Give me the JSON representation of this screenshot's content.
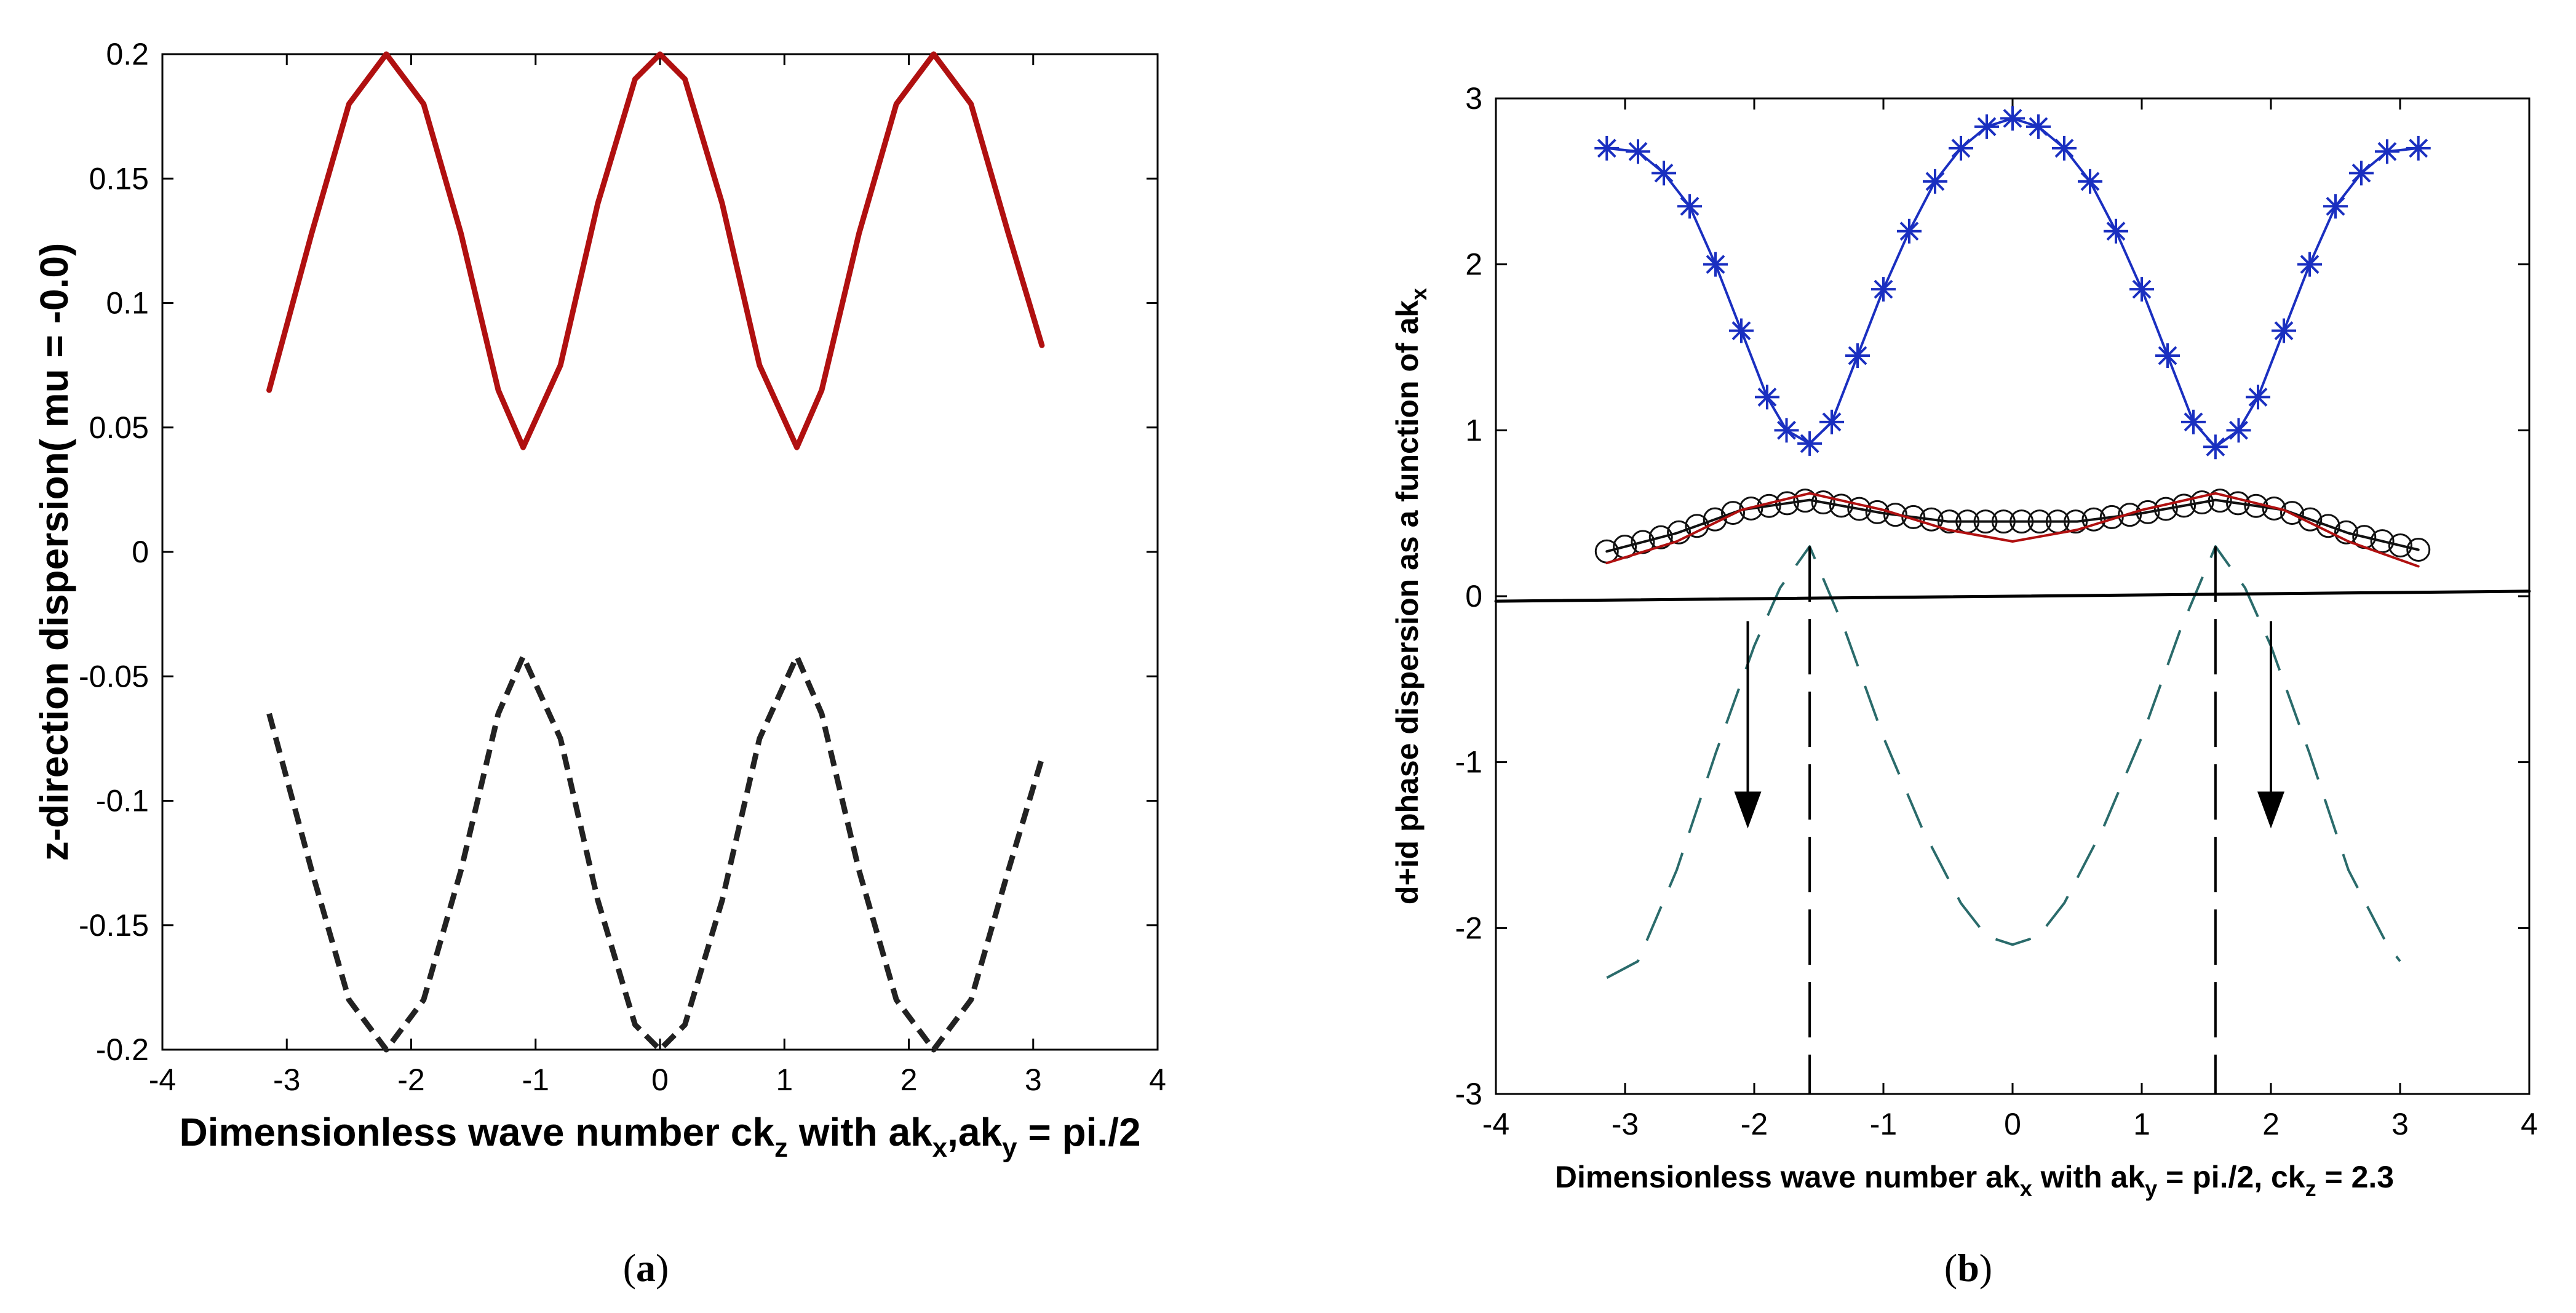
{
  "chart_data": [
    {
      "panel": "a",
      "type": "line",
      "caption_letter": "a",
      "xlabel": {
        "main": "Dimensionless wave number ck",
        "sub1": "z",
        "mid": " with ak",
        "sub2": "x",
        "mid2": ",ak",
        "sub3": "y",
        "tail": " = pi./2"
      },
      "ylabel": "z-direction dispersion( mu =  -0.0)",
      "xlim": [
        -4,
        4
      ],
      "ylim": [
        -0.2,
        0.2
      ],
      "xticks": [
        -4,
        -3,
        -2,
        -1,
        0,
        1,
        2,
        3,
        4
      ],
      "xtick_labels": [
        "-4",
        "-3",
        "-2",
        "-1",
        "0",
        "1",
        "2",
        "3",
        "4"
      ],
      "yticks": [
        -0.2,
        -0.15,
        -0.1,
        -0.05,
        0,
        0.05,
        0.1,
        0.15,
        0.2
      ],
      "ytick_labels": [
        "-0.2",
        "-0.15",
        "-0.1",
        "-0.05",
        "0",
        "0.05",
        "0.1",
        "0.15",
        "0.2"
      ],
      "series": [
        {
          "name": "upper solid",
          "style": "solid",
          "color": "#b01010",
          "x": [
            -3.1416,
            -2.8,
            -2.5,
            -2.2,
            -1.9,
            -1.6,
            -1.3,
            -1.1,
            -0.8,
            -0.5,
            -0.2,
            0,
            0.2,
            0.5,
            0.8,
            1.1,
            1.3,
            1.6,
            1.9,
            2.2,
            2.5,
            2.8,
            3.07
          ],
          "y": [
            0.065,
            0.128,
            0.18,
            0.2,
            0.18,
            0.128,
            0.065,
            0.042,
            0.075,
            0.14,
            0.19,
            0.2,
            0.19,
            0.14,
            0.075,
            0.042,
            0.065,
            0.128,
            0.18,
            0.2,
            0.18,
            0.128,
            0.083
          ]
        },
        {
          "name": "lower dashed",
          "style": "dashed",
          "color": "#222222",
          "x": [
            -3.1416,
            -2.8,
            -2.5,
            -2.2,
            -1.9,
            -1.6,
            -1.3,
            -1.1,
            -0.8,
            -0.5,
            -0.2,
            0,
            0.2,
            0.5,
            0.8,
            1.1,
            1.3,
            1.6,
            1.9,
            2.2,
            2.5,
            2.8,
            3.07
          ],
          "y": [
            -0.065,
            -0.128,
            -0.18,
            -0.2,
            -0.18,
            -0.128,
            -0.065,
            -0.042,
            -0.075,
            -0.14,
            -0.19,
            -0.2,
            -0.19,
            -0.14,
            -0.075,
            -0.042,
            -0.065,
            -0.128,
            -0.18,
            -0.2,
            -0.18,
            -0.128,
            -0.083
          ]
        }
      ]
    },
    {
      "panel": "b",
      "type": "line",
      "caption_letter": "b",
      "xlabel": {
        "main": "Dimensionless wave number ak",
        "sub1": "x",
        "mid": " with ak",
        "sub2": "y",
        "mid2": " = pi./2, ck",
        "sub3": "z",
        "tail": " = 2.3"
      },
      "ylabel": {
        "main": "d+id phase dispersion as a function of ak",
        "sub": "x"
      },
      "xlim": [
        -4,
        4
      ],
      "ylim": [
        -3,
        3
      ],
      "xticks": [
        -4,
        -3,
        -2,
        -1,
        0,
        1,
        2,
        3,
        4
      ],
      "xtick_labels": [
        "-4",
        "-3",
        "-2",
        "-1",
        "0",
        "1",
        "2",
        "3",
        "4"
      ],
      "yticks": [
        -3,
        -2,
        -1,
        0,
        1,
        2,
        3
      ],
      "ytick_labels": [
        "-3",
        "-2",
        "-1",
        "0",
        "1",
        "2",
        "3"
      ],
      "series": [
        {
          "name": "blue asterisks",
          "style": "line+asterisk",
          "color": "#1a2fc0",
          "x": [
            -3.1416,
            -2.9,
            -2.7,
            -2.5,
            -2.3,
            -2.1,
            -1.9,
            -1.75,
            -1.5708,
            -1.4,
            -1.2,
            -1.0,
            -0.8,
            -0.6,
            -0.4,
            -0.2,
            0,
            0.2,
            0.4,
            0.6,
            0.8,
            1.0,
            1.2,
            1.4,
            1.5708,
            1.75,
            1.9,
            2.1,
            2.3,
            2.5,
            2.7,
            2.9,
            3.1416
          ],
          "y": [
            2.7,
            2.68,
            2.55,
            2.35,
            2.0,
            1.6,
            1.2,
            1.0,
            0.92,
            1.05,
            1.45,
            1.85,
            2.2,
            2.5,
            2.7,
            2.83,
            2.88,
            2.83,
            2.7,
            2.5,
            2.2,
            1.85,
            1.45,
            1.05,
            0.9,
            1.0,
            1.2,
            1.6,
            2.0,
            2.35,
            2.55,
            2.68,
            2.7
          ]
        },
        {
          "name": "black circles",
          "style": "line+circle",
          "color": "#111111",
          "x": [
            -3.1416,
            -2.6,
            -2.1,
            -1.5708,
            -1.0,
            -0.5,
            0,
            0.5,
            1.0,
            1.5708,
            2.1,
            2.6,
            3.1416
          ],
          "y": [
            0.27,
            0.38,
            0.52,
            0.58,
            0.5,
            0.45,
            0.45,
            0.45,
            0.5,
            0.58,
            0.52,
            0.38,
            0.28
          ]
        },
        {
          "name": "red line",
          "style": "solid",
          "color": "#b01010",
          "x": [
            -3.1416,
            -2.6,
            -2.1,
            -1.5708,
            -1.0,
            -0.5,
            0,
            0.5,
            1.0,
            1.5708,
            2.1,
            2.6,
            3.1416
          ],
          "y": [
            0.2,
            0.33,
            0.52,
            0.62,
            0.52,
            0.4,
            0.33,
            0.4,
            0.52,
            0.62,
            0.52,
            0.33,
            0.18
          ]
        },
        {
          "name": "teal dashed",
          "style": "dashed",
          "color": "#2a6b6b",
          "x": [
            -3.1416,
            -2.9,
            -2.6,
            -2.3,
            -2.0,
            -1.8,
            -1.5708,
            -1.3,
            -1.0,
            -0.7,
            -0.4,
            -0.2,
            0,
            0.2,
            0.4,
            0.7,
            1.0,
            1.3,
            1.5708,
            1.8,
            2.0,
            2.3,
            2.6,
            2.9,
            3.0
          ],
          "y": [
            -2.3,
            -2.2,
            -1.65,
            -0.95,
            -0.3,
            0.05,
            0.3,
            -0.2,
            -0.85,
            -1.4,
            -1.85,
            -2.05,
            -2.1,
            -2.05,
            -1.85,
            -1.4,
            -0.85,
            -0.2,
            0.3,
            0.05,
            -0.3,
            -0.95,
            -1.65,
            -2.1,
            -2.2
          ]
        },
        {
          "name": "black baseline",
          "style": "solid",
          "color": "#000000",
          "x": [
            -4,
            4
          ],
          "y": [
            -0.03,
            0.03
          ]
        }
      ],
      "annotations": [
        {
          "kind": "vertical-dashed",
          "x": -1.5708,
          "y_from": 0.3,
          "y_to": -3
        },
        {
          "kind": "vertical-dashed",
          "x": 1.5708,
          "y_from": 0.3,
          "y_to": -3
        },
        {
          "kind": "arrow-down",
          "x": -2.05,
          "y_from": -0.15,
          "y_to": -1.4
        },
        {
          "kind": "arrow-down",
          "x": 2.0,
          "y_from": -0.15,
          "y_to": -1.4
        }
      ]
    }
  ]
}
